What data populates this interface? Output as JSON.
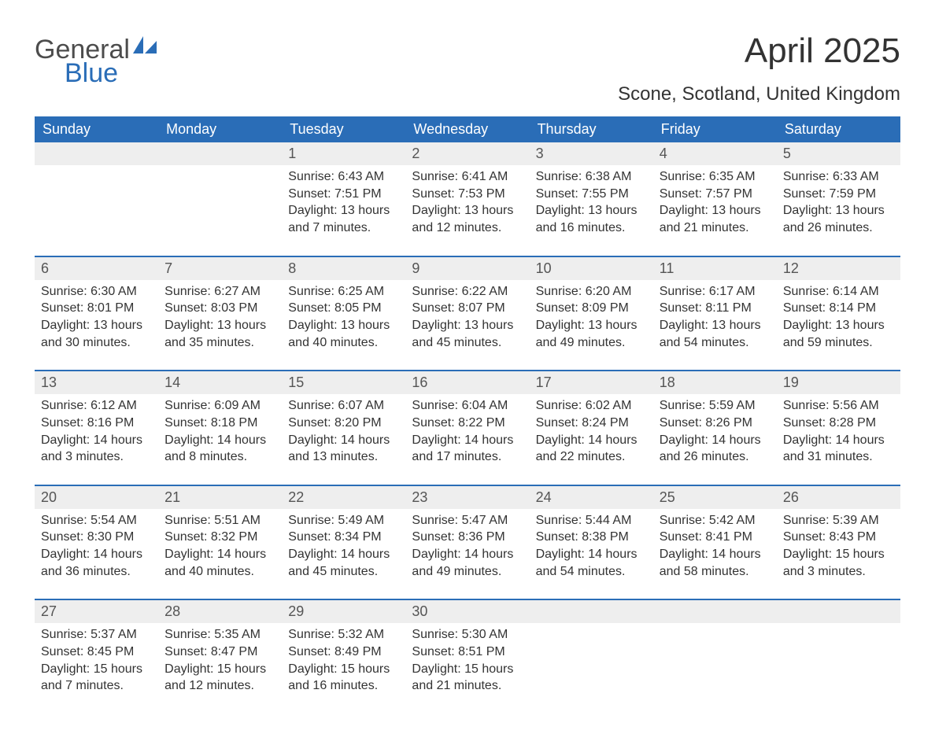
{
  "logo": {
    "word1": "General",
    "word2": "Blue",
    "accent_color": "#2a6db7"
  },
  "title": "April 2025",
  "location": "Scone, Scotland, United Kingdom",
  "colors": {
    "header_bg": "#2a6db7",
    "header_text": "#ffffff",
    "daynum_bg": "#eeeeee",
    "daynum_text": "#555555",
    "row_divider": "#2a6db7",
    "body_text": "#333333",
    "page_bg": "#ffffff"
  },
  "typography": {
    "title_fontsize": 44,
    "location_fontsize": 24,
    "header_fontsize": 18,
    "daynum_fontsize": 18,
    "body_fontsize": 16,
    "font_family": "Arial"
  },
  "weekdays": [
    "Sunday",
    "Monday",
    "Tuesday",
    "Wednesday",
    "Thursday",
    "Friday",
    "Saturday"
  ],
  "labels": {
    "sunrise": "Sunrise:",
    "sunset": "Sunset:",
    "daylight": "Daylight:"
  },
  "weeks": [
    [
      null,
      null,
      {
        "d": "1",
        "sunrise": "6:43 AM",
        "sunset": "7:51 PM",
        "daylight": "13 hours and 7 minutes."
      },
      {
        "d": "2",
        "sunrise": "6:41 AM",
        "sunset": "7:53 PM",
        "daylight": "13 hours and 12 minutes."
      },
      {
        "d": "3",
        "sunrise": "6:38 AM",
        "sunset": "7:55 PM",
        "daylight": "13 hours and 16 minutes."
      },
      {
        "d": "4",
        "sunrise": "6:35 AM",
        "sunset": "7:57 PM",
        "daylight": "13 hours and 21 minutes."
      },
      {
        "d": "5",
        "sunrise": "6:33 AM",
        "sunset": "7:59 PM",
        "daylight": "13 hours and 26 minutes."
      }
    ],
    [
      {
        "d": "6",
        "sunrise": "6:30 AM",
        "sunset": "8:01 PM",
        "daylight": "13 hours and 30 minutes."
      },
      {
        "d": "7",
        "sunrise": "6:27 AM",
        "sunset": "8:03 PM",
        "daylight": "13 hours and 35 minutes."
      },
      {
        "d": "8",
        "sunrise": "6:25 AM",
        "sunset": "8:05 PM",
        "daylight": "13 hours and 40 minutes."
      },
      {
        "d": "9",
        "sunrise": "6:22 AM",
        "sunset": "8:07 PM",
        "daylight": "13 hours and 45 minutes."
      },
      {
        "d": "10",
        "sunrise": "6:20 AM",
        "sunset": "8:09 PM",
        "daylight": "13 hours and 49 minutes."
      },
      {
        "d": "11",
        "sunrise": "6:17 AM",
        "sunset": "8:11 PM",
        "daylight": "13 hours and 54 minutes."
      },
      {
        "d": "12",
        "sunrise": "6:14 AM",
        "sunset": "8:14 PM",
        "daylight": "13 hours and 59 minutes."
      }
    ],
    [
      {
        "d": "13",
        "sunrise": "6:12 AM",
        "sunset": "8:16 PM",
        "daylight": "14 hours and 3 minutes."
      },
      {
        "d": "14",
        "sunrise": "6:09 AM",
        "sunset": "8:18 PM",
        "daylight": "14 hours and 8 minutes."
      },
      {
        "d": "15",
        "sunrise": "6:07 AM",
        "sunset": "8:20 PM",
        "daylight": "14 hours and 13 minutes."
      },
      {
        "d": "16",
        "sunrise": "6:04 AM",
        "sunset": "8:22 PM",
        "daylight": "14 hours and 17 minutes."
      },
      {
        "d": "17",
        "sunrise": "6:02 AM",
        "sunset": "8:24 PM",
        "daylight": "14 hours and 22 minutes."
      },
      {
        "d": "18",
        "sunrise": "5:59 AM",
        "sunset": "8:26 PM",
        "daylight": "14 hours and 26 minutes."
      },
      {
        "d": "19",
        "sunrise": "5:56 AM",
        "sunset": "8:28 PM",
        "daylight": "14 hours and 31 minutes."
      }
    ],
    [
      {
        "d": "20",
        "sunrise": "5:54 AM",
        "sunset": "8:30 PM",
        "daylight": "14 hours and 36 minutes."
      },
      {
        "d": "21",
        "sunrise": "5:51 AM",
        "sunset": "8:32 PM",
        "daylight": "14 hours and 40 minutes."
      },
      {
        "d": "22",
        "sunrise": "5:49 AM",
        "sunset": "8:34 PM",
        "daylight": "14 hours and 45 minutes."
      },
      {
        "d": "23",
        "sunrise": "5:47 AM",
        "sunset": "8:36 PM",
        "daylight": "14 hours and 49 minutes."
      },
      {
        "d": "24",
        "sunrise": "5:44 AM",
        "sunset": "8:38 PM",
        "daylight": "14 hours and 54 minutes."
      },
      {
        "d": "25",
        "sunrise": "5:42 AM",
        "sunset": "8:41 PM",
        "daylight": "14 hours and 58 minutes."
      },
      {
        "d": "26",
        "sunrise": "5:39 AM",
        "sunset": "8:43 PM",
        "daylight": "15 hours and 3 minutes."
      }
    ],
    [
      {
        "d": "27",
        "sunrise": "5:37 AM",
        "sunset": "8:45 PM",
        "daylight": "15 hours and 7 minutes."
      },
      {
        "d": "28",
        "sunrise": "5:35 AM",
        "sunset": "8:47 PM",
        "daylight": "15 hours and 12 minutes."
      },
      {
        "d": "29",
        "sunrise": "5:32 AM",
        "sunset": "8:49 PM",
        "daylight": "15 hours and 16 minutes."
      },
      {
        "d": "30",
        "sunrise": "5:30 AM",
        "sunset": "8:51 PM",
        "daylight": "15 hours and 21 minutes."
      },
      null,
      null,
      null
    ]
  ]
}
